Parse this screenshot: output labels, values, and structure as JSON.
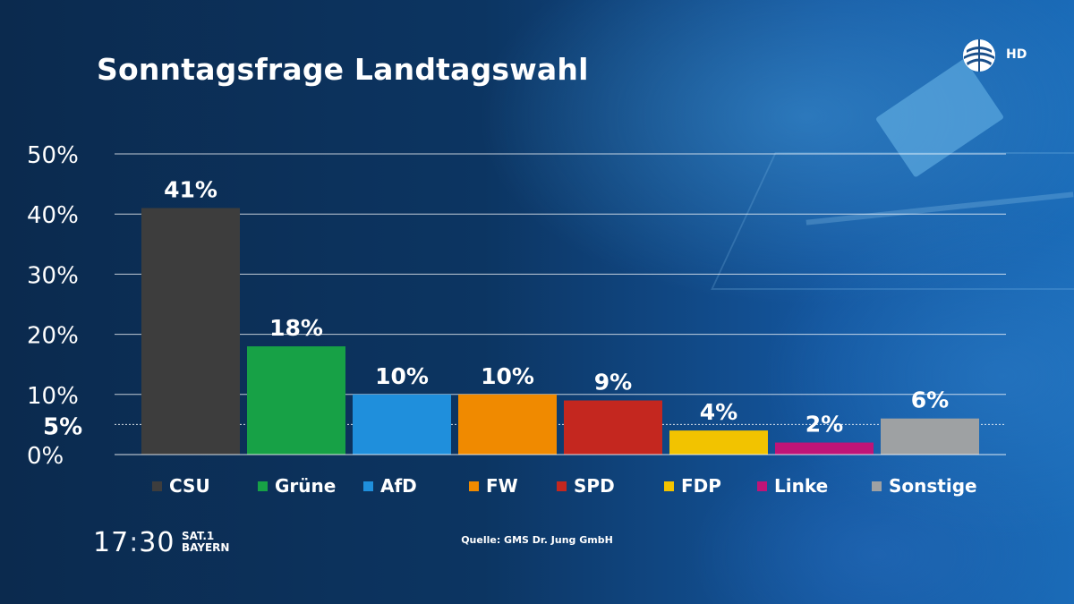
{
  "header": {
    "title": "Sonntagsfrage Landtagswahl",
    "hd_label": "HD"
  },
  "chart_data": {
    "type": "bar",
    "title": "Sonntagsfrage Landtagswahl",
    "categories": [
      "CSU",
      "Grüne",
      "AfD",
      "FW",
      "SPD",
      "FDP",
      "Linke",
      "Sonstige"
    ],
    "values": [
      41,
      18,
      10,
      10,
      9,
      4,
      2,
      6
    ],
    "value_labels": [
      "41%",
      "18%",
      "10%",
      "10%",
      "9%",
      "4%",
      "2%",
      "6%"
    ],
    "colors": [
      "#3d3d3d",
      "#17a146",
      "#1f8fdc",
      "#f08a00",
      "#c4271f",
      "#f2c300",
      "#bf1477",
      "#9ea1a3"
    ],
    "yticks": [
      0,
      10,
      20,
      30,
      40,
      50
    ],
    "ytick_labels": [
      "0%",
      "10%",
      "20%",
      "30%",
      "40%",
      "50%"
    ],
    "threshold": 5,
    "threshold_label": "5%",
    "ylim": [
      0,
      50
    ],
    "grid": true,
    "legend": "bottom",
    "xlabel": "",
    "ylabel": ""
  },
  "footer": {
    "clock_hours": "17",
    "clock_sep": ":",
    "clock_minutes": "30",
    "channel_line1": "SAT.1",
    "channel_line2": "BAYERN",
    "source": "Quelle: GMS Dr. Jung GmbH"
  }
}
